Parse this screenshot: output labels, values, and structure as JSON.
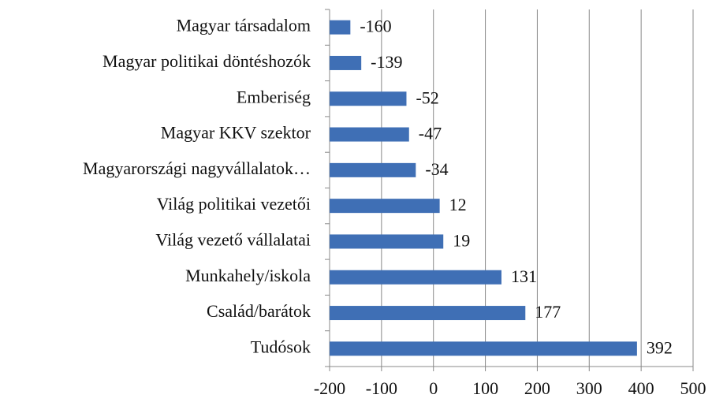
{
  "chart_data": {
    "type": "hbar",
    "categories": [
      "Magyar társadalom",
      "Magyar politikai döntéshozók",
      "Emberiség",
      "Magyar KKV szektor",
      "Magyarországi nagyvállalatok…",
      "Világ politikai vezetői",
      "Világ vezető vállalatai",
      "Munkahely/iskola",
      "Család/barátok",
      "Tudósok"
    ],
    "values": [
      -160,
      -139,
      -52,
      -47,
      -34,
      12,
      19,
      131,
      177,
      392
    ],
    "color": "#3f6fb5",
    "xlim": [
      -200,
      500
    ],
    "xticks": [
      -200,
      -100,
      0,
      100,
      200,
      300,
      400,
      500
    ],
    "grid": true
  }
}
